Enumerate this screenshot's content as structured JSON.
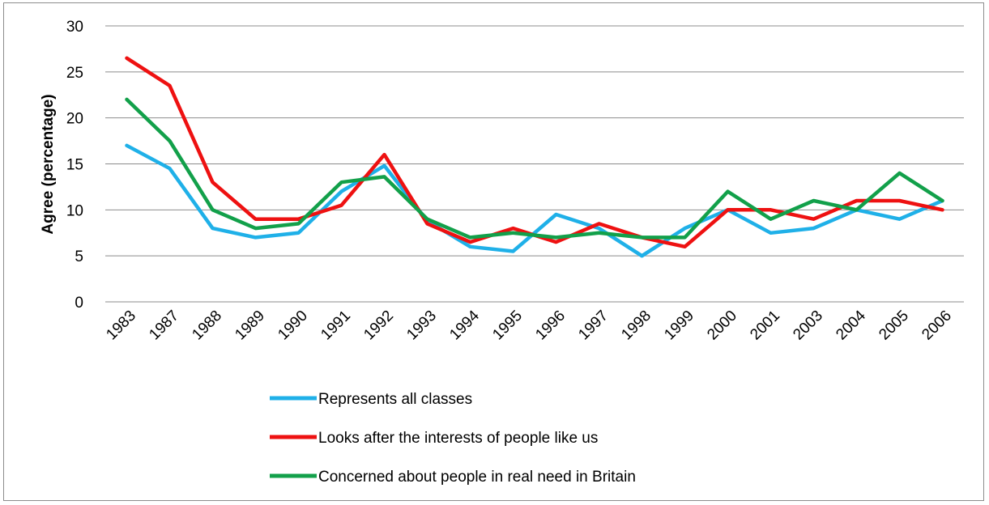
{
  "chart_data": {
    "type": "line",
    "title": "",
    "xlabel": "",
    "ylabel": "Agree (percentage)",
    "ylim": [
      0,
      30
    ],
    "yticks": [
      0,
      5,
      10,
      15,
      20,
      25,
      30
    ],
    "grid": true,
    "legend_position": "bottom",
    "categories": [
      "1983",
      "1987",
      "1988",
      "1989",
      "1990",
      "1991",
      "1992",
      "1993",
      "1994",
      "1995",
      "1996",
      "1997",
      "1998",
      "1999",
      "2000",
      "2001",
      "2003",
      "2004",
      "2005",
      "2006"
    ],
    "series": [
      {
        "name": "Represents all classes",
        "color": "#1fb0e8",
        "values": [
          17,
          14.5,
          8,
          7,
          7.5,
          12,
          14.8,
          8.8,
          6,
          5.5,
          9.5,
          8,
          5,
          8,
          10,
          7.5,
          8,
          10,
          9,
          11
        ]
      },
      {
        "name": "Looks after the interests of people like us",
        "color": "#ee1111",
        "values": [
          26.5,
          23.5,
          13,
          9,
          9,
          10.5,
          16,
          8.5,
          6.5,
          8,
          6.5,
          8.5,
          7,
          6,
          10,
          10,
          9,
          11,
          11,
          10
        ]
      },
      {
        "name": "Concerned about people in real need in Britain",
        "color": "#12a04a",
        "values": [
          22,
          17.5,
          10,
          8,
          8.5,
          13,
          13.6,
          9,
          7,
          7.5,
          7,
          7.5,
          7,
          7,
          12,
          9,
          11,
          10,
          14,
          11
        ]
      }
    ]
  }
}
